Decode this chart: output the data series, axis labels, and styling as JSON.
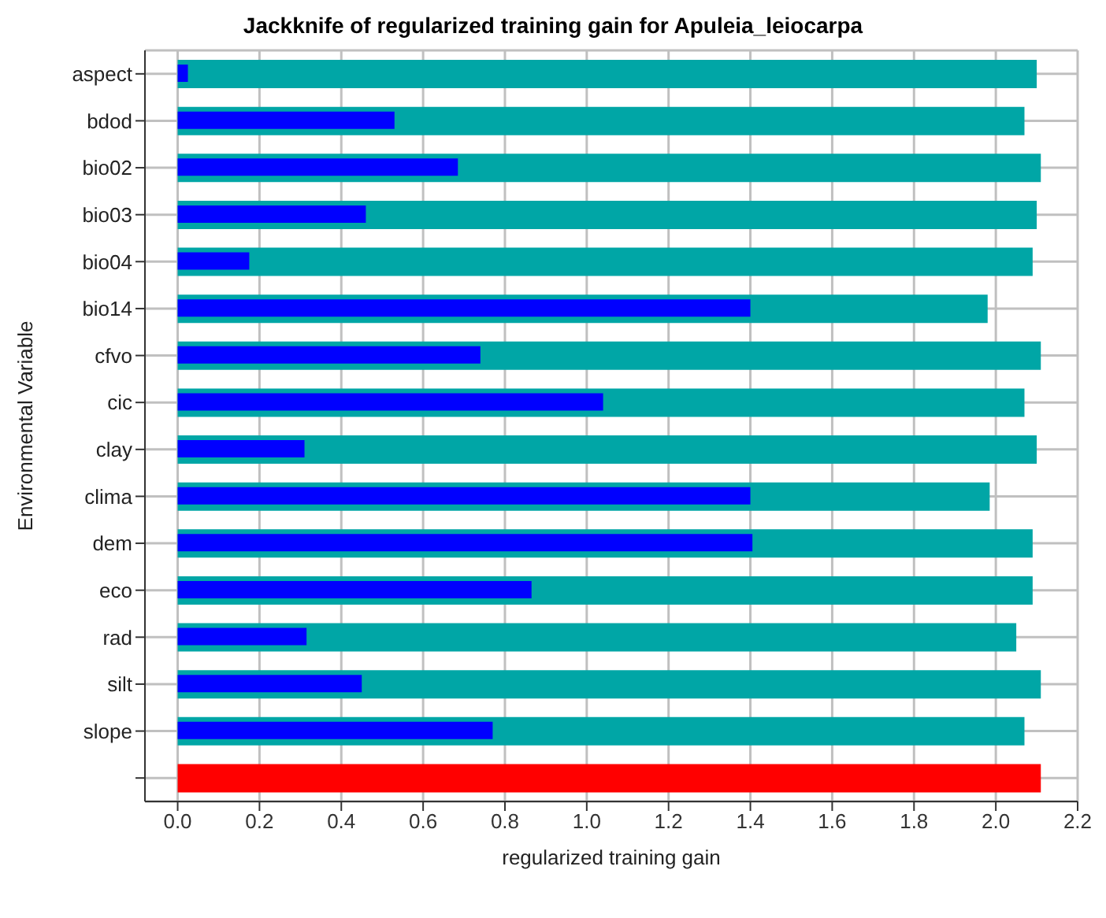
{
  "chart_data": {
    "type": "bar",
    "orientation": "horizontal",
    "title": "Jackknife of regularized training gain for Apuleia_leiocarpa",
    "xlabel": "regularized training gain",
    "ylabel": "Environmental Variable",
    "categories": [
      "aspect",
      "bdod",
      "bio02",
      "bio03",
      "bio04",
      "bio14",
      "cfvo",
      "cic",
      "clay",
      "clima",
      "dem",
      "eco",
      "rad",
      "silt",
      "slope",
      null
    ],
    "series": [
      {
        "color": "#00a6a6",
        "values": [
          2.1,
          2.07,
          2.11,
          2.1,
          2.09,
          1.98,
          2.11,
          2.07,
          2.1,
          1.985,
          2.09,
          2.09,
          2.05,
          2.11,
          2.07,
          null
        ]
      },
      {
        "color": "#0000ff",
        "values": [
          0.025,
          0.53,
          0.685,
          0.46,
          0.175,
          1.4,
          0.74,
          1.04,
          0.31,
          1.4,
          1.405,
          0.865,
          0.315,
          0.45,
          0.77,
          null
        ]
      },
      {
        "color": "#ff0000",
        "values": [
          null,
          null,
          null,
          null,
          null,
          null,
          null,
          null,
          null,
          null,
          null,
          null,
          null,
          null,
          null,
          2.11
        ]
      }
    ],
    "xlim": [
      -0.08,
      2.2
    ],
    "xticks": [
      {
        "value": 0,
        "label": "0.0"
      },
      0.2,
      0.4,
      0.6,
      0.8,
      {
        "value": 1,
        "label": "1.0"
      },
      1.2,
      1.4,
      1.6,
      1.8,
      {
        "value": 2,
        "label": "2.0"
      },
      2.2
    ],
    "grid": true
  }
}
